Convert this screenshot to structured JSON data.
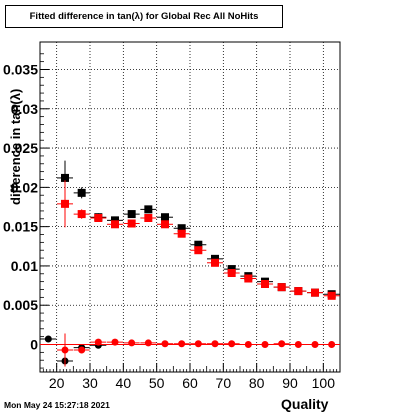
{
  "chart_data": {
    "type": "scatter",
    "title": "Fitted difference in tan(λ) for Global Rec All NoHits",
    "xlabel": "Quality",
    "ylabel": "difference in tan(λ)",
    "xlim": [
      15,
      105
    ],
    "ylim": [
      -0.0035,
      0.0385
    ],
    "xticks": [
      20,
      30,
      40,
      50,
      60,
      70,
      80,
      90,
      100
    ],
    "yticks": [
      0,
      0.005,
      0.01,
      0.015,
      0.02,
      0.025,
      0.03,
      0.035
    ],
    "ytick_labels": [
      "0",
      "0.005",
      "0.01",
      "0.015",
      "0.02",
      "0.025",
      "0.03",
      "0.035"
    ],
    "grid": true,
    "series": [
      {
        "marker": "square",
        "color": "#000000",
        "x": [
          22.5,
          27.5,
          32.5,
          37.5,
          42.5,
          47.5,
          52.5,
          57.5,
          62.5,
          67.5,
          72.5,
          77.5,
          82.5,
          87.5,
          92.5,
          97.5,
          102.5
        ],
        "y": [
          0.0212,
          0.0193,
          0.0162,
          0.0158,
          0.0166,
          0.0172,
          0.0162,
          0.0148,
          0.0127,
          0.0109,
          0.0096,
          0.0087,
          0.008,
          0.0073,
          0.0068,
          0.0066,
          0.0064
        ],
        "yerr": [
          0.0022,
          0.0007,
          0.0005,
          0.0004,
          0.0004,
          0.0004,
          0.0004,
          0.0004,
          0.0004,
          0.0004,
          0.0004,
          0.0003,
          0.0003,
          0.0003,
          0.0003,
          0.0003,
          0.0003
        ]
      },
      {
        "marker": "square",
        "color": "#ff0000",
        "x": [
          22.5,
          27.5,
          32.5,
          37.5,
          42.5,
          47.5,
          52.5,
          57.5,
          62.5,
          67.5,
          72.5,
          77.5,
          82.5,
          87.5,
          92.5,
          97.5,
          102.5
        ],
        "y": [
          0.0179,
          0.0166,
          0.0161,
          0.0153,
          0.0154,
          0.0161,
          0.0153,
          0.0141,
          0.012,
          0.0104,
          0.0091,
          0.0084,
          0.0077,
          0.0073,
          0.0068,
          0.0066,
          0.0062
        ],
        "yerr": [
          0.003,
          0.0006,
          0.0005,
          0.0004,
          0.0004,
          0.0004,
          0.0004,
          0.0004,
          0.0004,
          0.0004,
          0.0004,
          0.0003,
          0.0003,
          0.0003,
          0.0003,
          0.0003,
          0.0003
        ]
      },
      {
        "marker": "circle",
        "color": "#000000",
        "x": [
          17.5,
          22.5,
          27.5,
          32.5
        ],
        "y": [
          0.0007,
          -0.0021,
          -0.0004,
          -0.0001
        ],
        "yerr": [
          0.0003,
          0.0006,
          0.0004,
          0.0003
        ]
      },
      {
        "marker": "circle",
        "color": "#ff0000",
        "x": [
          22.5,
          27.5,
          32.5,
          37.5,
          42.5,
          47.5,
          52.5,
          57.5,
          62.5,
          67.5,
          72.5,
          77.5,
          82.5,
          87.5,
          92.5,
          97.5,
          102.5
        ],
        "y": [
          -0.0007,
          -0.0007,
          0.0003,
          0.0003,
          0.0002,
          0.0002,
          0.0001,
          0.0001,
          0.0001,
          0.0001,
          0.0001,
          0.0,
          0.0,
          0.0001,
          0.0,
          0.0,
          0.0
        ],
        "yerr": [
          0.0021,
          0.0004,
          0.0003,
          0.0002,
          0.0002,
          0.0002,
          0.0002,
          0.0002,
          0.0002,
          0.0002,
          0.0002,
          0.0002,
          0.0002,
          0.0002,
          0.0002,
          0.0002,
          0.0002
        ]
      }
    ]
  },
  "timestamp": "Mon May 24 15:27:18 2021"
}
